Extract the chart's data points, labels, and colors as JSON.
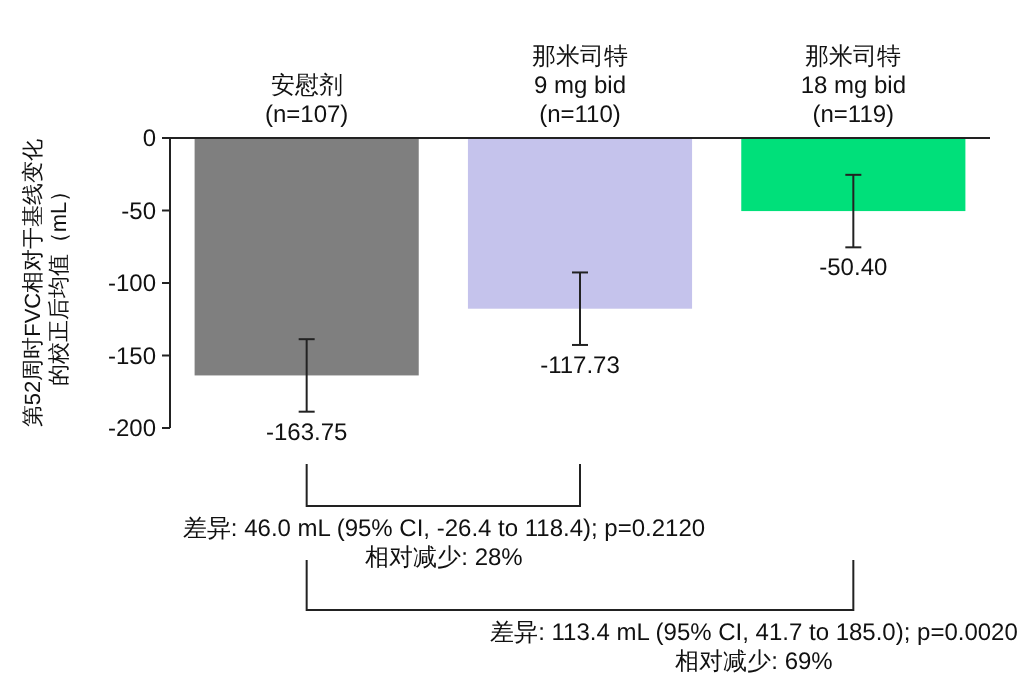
{
  "chart_data": {
    "type": "bar",
    "ylabel": "第52周时FVC相对于基线变化的校正后均值（mL）",
    "categories": [
      "安慰剂\n(n=107)",
      "那米司特\n9 mg bid\n(n=110)",
      "那米司特\n18 mg bid\n(n=119)"
    ],
    "values": [
      -163.75,
      -117.73,
      -50.4
    ],
    "value_labels": [
      "-163.75",
      "-117.73",
      "-50.40"
    ],
    "colors": [
      "#7f7f7f",
      "#c5c3ec",
      "#00e07a"
    ],
    "errors": [
      25,
      25,
      25
    ],
    "ylim": [
      -200,
      0
    ],
    "yticks": [
      0,
      -50,
      -100,
      -150,
      -200
    ],
    "annotations": [
      "差异: 46.0 mL (95% CI, -26.4 to 118.4); p=0.2120\n相对减少: 28%",
      "差异: 113.4 mL (95% CI, 41.7 to 185.0); p=0.0020\n相对减少: 69%"
    ]
  }
}
